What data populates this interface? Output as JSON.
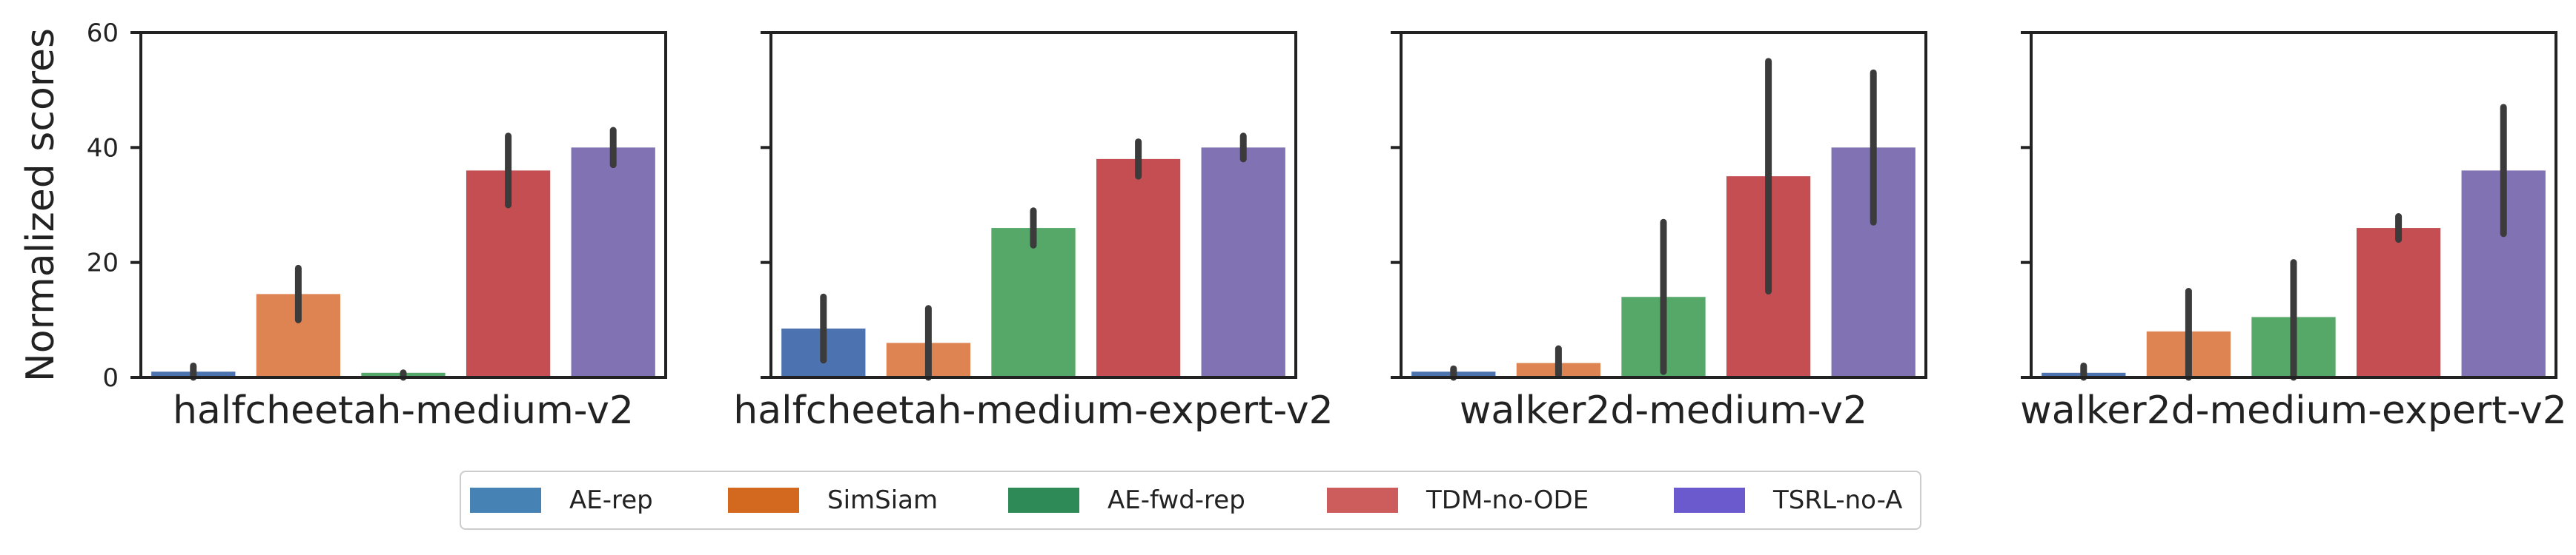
{
  "chart_data": {
    "type": "bar",
    "ylabel": "Normalized scores",
    "ylim": [
      0,
      60
    ],
    "yticks": [
      "0",
      "20",
      "40",
      "60"
    ],
    "legend": {
      "placement": "bottom-center",
      "entries": [
        {
          "name": "AE-rep",
          "color": "#4c72b0"
        },
        {
          "name": "SimSiam",
          "color": "#dd8452"
        },
        {
          "name": "AE-fwd-rep",
          "color": "#55a868"
        },
        {
          "name": "TDM-no-ODE",
          "color": "#c44e52"
        },
        {
          "name": "TSRL-no-A",
          "color": "#8172b3"
        }
      ],
      "swatch_colors": [
        "#4682b4",
        "#d2691e",
        "#2e8b57",
        "#cd5c5c",
        "#6a5acd"
      ]
    },
    "series_names": [
      "AE-rep",
      "SimSiam",
      "AE-fwd-rep",
      "TDM-no-ODE",
      "TSRL-no-A"
    ],
    "errorbar_color": "#3b3b3b",
    "panels": [
      {
        "title": "halfcheetah-medium-v2",
        "values": [
          1,
          14.5,
          0.8,
          36,
          40
        ],
        "err_low": [
          0,
          10,
          0,
          30,
          37
        ],
        "err_high": [
          2,
          19,
          0.8,
          42,
          43
        ]
      },
      {
        "title": "halfcheetah-medium-expert-v2",
        "values": [
          8.5,
          6,
          26,
          38,
          40
        ],
        "err_low": [
          3,
          0,
          23,
          35,
          38
        ],
        "err_high": [
          14,
          12,
          29,
          41,
          42
        ]
      },
      {
        "title": "walker2d-medium-v2",
        "values": [
          1,
          2.5,
          14,
          35,
          40
        ],
        "err_low": [
          0,
          0.5,
          1,
          15,
          27
        ],
        "err_high": [
          1.5,
          5,
          27,
          55,
          53
        ]
      },
      {
        "title": "walker2d-medium-expert-v2",
        "values": [
          0.8,
          8,
          10.5,
          26,
          36
        ],
        "err_low": [
          0,
          0,
          0,
          24,
          25
        ],
        "err_high": [
          2,
          15,
          20,
          28,
          47
        ]
      }
    ]
  }
}
